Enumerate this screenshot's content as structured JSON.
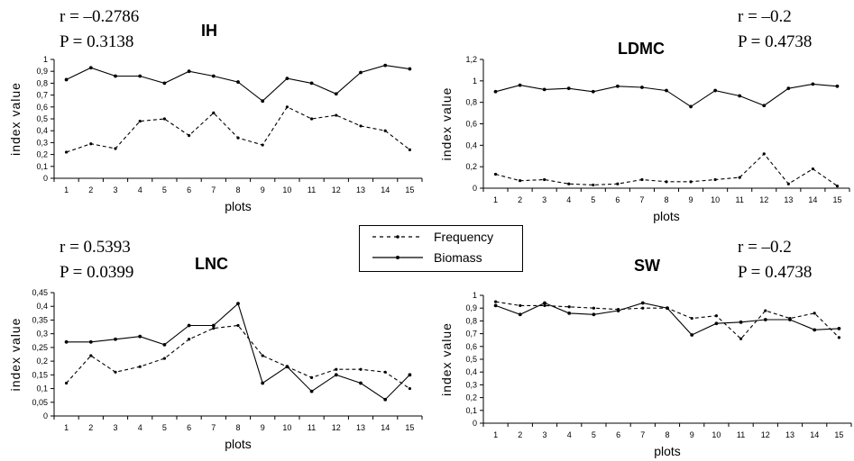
{
  "panels": [
    {
      "title": "IH",
      "r_text": "r = –0.2786",
      "p_text": "P = 0.3138"
    },
    {
      "title": "LDMC",
      "r_text": "r = –0.2",
      "p_text": "P = 0.4738"
    },
    {
      "title": "LNC",
      "r_text": "r = 0.5393",
      "p_text": "P = 0.0399"
    },
    {
      "title": "SW",
      "r_text": "r = –0.2",
      "p_text": "P = 0.4738"
    }
  ],
  "legend": {
    "frequency": "Frequency",
    "biomass": "Biomass"
  },
  "chart_data": [
    {
      "type": "line",
      "title": "IH",
      "xlabel": "plots",
      "ylabel": "index value",
      "x": [
        1,
        2,
        3,
        4,
        5,
        6,
        7,
        8,
        9,
        10,
        11,
        12,
        13,
        14,
        15
      ],
      "ylim": [
        0,
        1
      ],
      "yticks": [
        "0",
        "0,1",
        "0,2",
        "0,3",
        "0,4",
        "0,5",
        "0,6",
        "0,7",
        "0,8",
        "0,9",
        "1"
      ],
      "series": [
        {
          "name": "Frequency",
          "style": "dashed",
          "values": [
            0.22,
            0.29,
            0.25,
            0.48,
            0.5,
            0.36,
            0.55,
            0.34,
            0.28,
            0.6,
            0.5,
            0.53,
            0.44,
            0.4,
            0.24
          ]
        },
        {
          "name": "Biomass",
          "style": "solid",
          "values": [
            0.83,
            0.93,
            0.86,
            0.86,
            0.8,
            0.9,
            0.86,
            0.81,
            0.65,
            0.84,
            0.8,
            0.71,
            0.89,
            0.95,
            0.92
          ]
        }
      ]
    },
    {
      "type": "line",
      "title": "LDMC",
      "xlabel": "plots",
      "ylabel": "index value",
      "x": [
        1,
        2,
        3,
        4,
        5,
        6,
        7,
        8,
        9,
        10,
        11,
        12,
        13,
        14,
        15
      ],
      "ylim": [
        0,
        1.2
      ],
      "yticks": [
        "0",
        "0,2",
        "0,4",
        "0,6",
        "0,8",
        "1",
        "1,2"
      ],
      "series": [
        {
          "name": "Frequency",
          "style": "dashed",
          "values": [
            0.13,
            0.07,
            0.08,
            0.04,
            0.03,
            0.04,
            0.08,
            0.06,
            0.06,
            0.08,
            0.1,
            0.32,
            0.04,
            0.18,
            0.02
          ]
        },
        {
          "name": "Biomass",
          "style": "solid",
          "values": [
            0.9,
            0.96,
            0.92,
            0.93,
            0.9,
            0.95,
            0.94,
            0.91,
            0.76,
            0.91,
            0.86,
            0.77,
            0.93,
            0.97,
            0.95
          ]
        }
      ]
    },
    {
      "type": "line",
      "title": "LNC",
      "xlabel": "plots",
      "ylabel": "index value",
      "x": [
        1,
        2,
        3,
        4,
        5,
        6,
        7,
        8,
        9,
        10,
        11,
        12,
        13,
        14,
        15
      ],
      "ylim": [
        0,
        0.45
      ],
      "yticks": [
        "0",
        "0,05",
        "0,1",
        "0,15",
        "0,2",
        "0,25",
        "0,3",
        "0,35",
        "0,4",
        "0,45"
      ],
      "series": [
        {
          "name": "Frequency",
          "style": "dashed",
          "values": [
            0.12,
            0.22,
            0.16,
            0.18,
            0.21,
            0.28,
            0.32,
            0.33,
            0.22,
            0.18,
            0.14,
            0.17,
            0.17,
            0.16,
            0.1
          ]
        },
        {
          "name": "Biomass",
          "style": "solid",
          "values": [
            0.27,
            0.27,
            0.28,
            0.29,
            0.26,
            0.33,
            0.33,
            0.41,
            0.12,
            0.18,
            0.09,
            0.15,
            0.12,
            0.06,
            0.15
          ]
        }
      ]
    },
    {
      "type": "line",
      "title": "SW",
      "xlabel": "plots",
      "ylabel": "index value",
      "x": [
        1,
        2,
        3,
        4,
        5,
        6,
        7,
        8,
        9,
        10,
        11,
        12,
        13,
        14,
        15
      ],
      "ylim": [
        0,
        1
      ],
      "yticks": [
        "0",
        "0,1",
        "0,2",
        "0,3",
        "0,4",
        "0,5",
        "0,6",
        "0,7",
        "0,8",
        "0,9",
        "1"
      ],
      "series": [
        {
          "name": "Frequency",
          "style": "dashed",
          "values": [
            0.95,
            0.92,
            0.92,
            0.91,
            0.9,
            0.89,
            0.9,
            0.9,
            0.82,
            0.84,
            0.66,
            0.88,
            0.82,
            0.86,
            0.67
          ]
        },
        {
          "name": "Biomass",
          "style": "solid",
          "values": [
            0.92,
            0.85,
            0.94,
            0.86,
            0.85,
            0.88,
            0.94,
            0.9,
            0.69,
            0.78,
            0.79,
            0.81,
            0.81,
            0.73,
            0.74
          ]
        }
      ]
    }
  ]
}
